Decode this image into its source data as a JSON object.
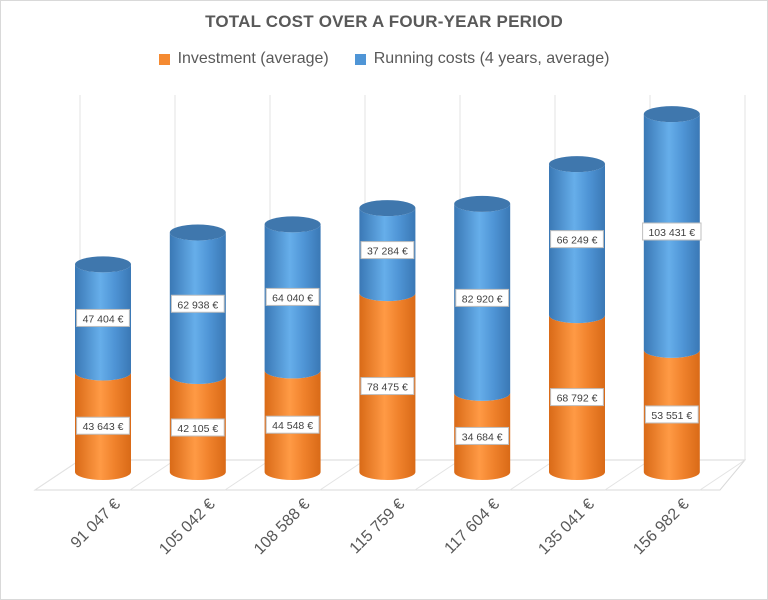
{
  "chart_data": {
    "type": "bar",
    "subtype": "stacked-3d-cylinder",
    "title": "TOTAL COST OVER A FOUR-YEAR PERIOD",
    "categories": [
      "91 047 €",
      "105 042 €",
      "108 588 €",
      "115 759 €",
      "117 604 €",
      "135 041 €",
      "156 982 €"
    ],
    "series": [
      {
        "name": "Investment (average)",
        "color": "#f58a31",
        "values": [
          43643,
          42105,
          44548,
          78475,
          34684,
          68792,
          53551
        ],
        "labels": [
          "43 643 €",
          "42 105 €",
          "44 548 €",
          "78 475 €",
          "34 684 €",
          "68 792 €",
          "53 551 €"
        ]
      },
      {
        "name": "Running costs (4 years, average)",
        "color": "#4f95d6",
        "values": [
          47404,
          62938,
          64040,
          37284,
          82920,
          66249,
          103431
        ],
        "labels": [
          "47 404 €",
          "62 938 €",
          "64 040 €",
          "37 284 €",
          "82 920 €",
          "66 249 €",
          "103 431 €"
        ]
      }
    ],
    "legend_position": "top",
    "grid": "vertical lines",
    "xlabel": "",
    "ylabel": ""
  }
}
